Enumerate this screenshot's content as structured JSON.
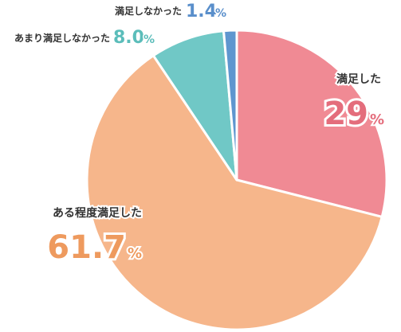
{
  "chart_data": {
    "type": "pie",
    "title": "",
    "start_angle_deg": 0,
    "direction": "clockwise",
    "legend": "none",
    "slices": [
      {
        "label": "満足した",
        "value": 29,
        "value_text": "29",
        "unit": "%",
        "color": "#f08a94",
        "label_color": "#e46d7c"
      },
      {
        "label": "ある程度満足した",
        "value": 61.7,
        "value_text": "61.7",
        "unit": "%",
        "color": "#f6b68b",
        "label_color": "#ee9a5e"
      },
      {
        "label": "あまり満足しなかった",
        "value": 8.0,
        "value_text": "8.0",
        "unit": "%",
        "color": "#70c8c6",
        "label_color": "#5bbdba"
      },
      {
        "label": "満足しなかった",
        "value": 1.4,
        "value_text": "1.4",
        "unit": "%",
        "color": "#5f96cf",
        "label_color": "#5a8fcb"
      }
    ],
    "label_text_color": "#333333"
  }
}
